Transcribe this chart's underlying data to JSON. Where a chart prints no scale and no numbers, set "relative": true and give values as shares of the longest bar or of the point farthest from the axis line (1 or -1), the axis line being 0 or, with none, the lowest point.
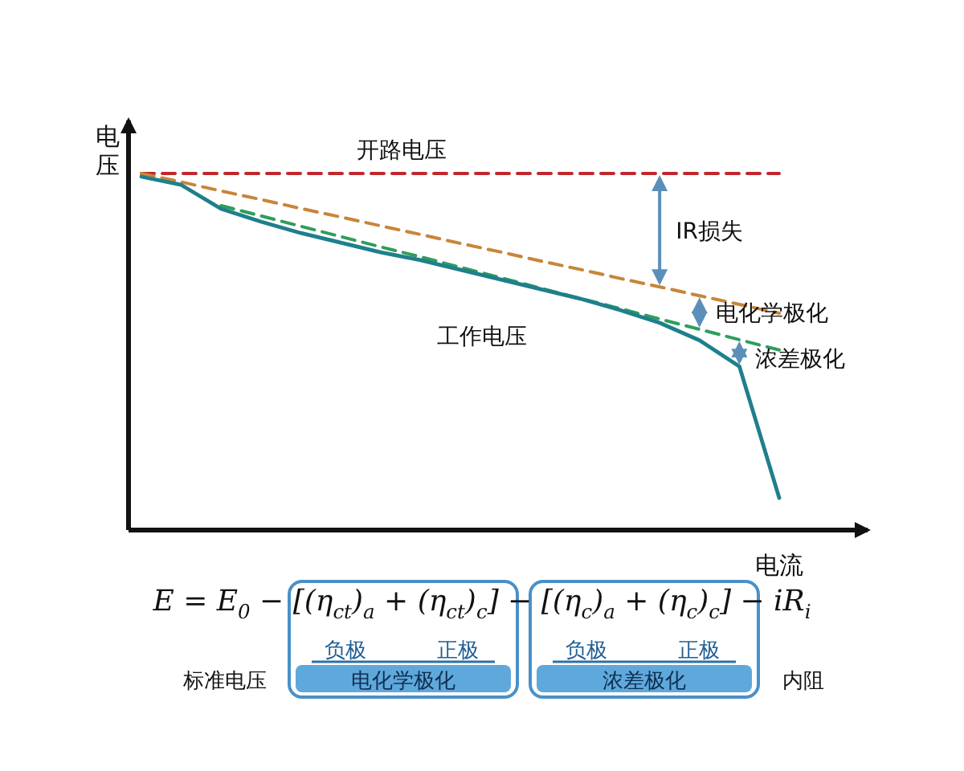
{
  "chart_data": {
    "type": "line",
    "relative": true,
    "xlabel": "电流",
    "ylabel": "电压",
    "categories": [
      null,
      null,
      null,
      null,
      null,
      null,
      null,
      null,
      null,
      null,
      null,
      null,
      null,
      null,
      null,
      null,
      null
    ],
    "series": [
      {
        "name": "开路电压",
        "color": "#c0272d",
        "line_style": "dashed",
        "values": [
          1,
          1,
          1,
          1,
          1,
          1,
          1,
          1,
          1,
          1,
          1,
          1,
          1,
          1,
          1,
          1,
          1
        ]
      },
      {
        "color": "#c8853a",
        "line_style": "dashed",
        "values": [
          1,
          0.976,
          0.951,
          0.927,
          0.902,
          0.878,
          0.853,
          0.829,
          0.804,
          0.78,
          0.755,
          0.731,
          0.706,
          0.682,
          0.657,
          0.633,
          0.608
        ]
      },
      {
        "color": "#2e9e5b",
        "line_style": "dashed",
        "values": [
          null,
          null,
          0.91,
          0.881,
          0.852,
          0.823,
          0.794,
          0.766,
          0.737,
          0.708,
          0.679,
          0.65,
          0.621,
          0.592,
          0.563,
          0.534,
          0.505
        ]
      },
      {
        "name": "工作电压",
        "color": "#1f7f8c",
        "line_style": "solid",
        "values": [
          0.991,
          0.968,
          0.901,
          0.865,
          0.833,
          0.806,
          0.779,
          0.757,
          0.73,
          0.703,
          0.676,
          0.649,
          0.617,
          0.581,
          0.532,
          0.459,
          0.09
        ]
      }
    ],
    "annotations": [
      "IR损失",
      "电化学极化",
      "浓差极化",
      "E = E$_{0}$ − [(η$_{ct}$)$_{a}$ + (η$_{ct}$)$_{c}$] − [(η$_{c}$)$_{a}$ + (η$_{c}$)$_{c}$] − iR$_{i}$",
      "负极",
      "正极",
      "电化学极化",
      "负极",
      "正极",
      "浓差极化",
      "标准电压",
      "内阻"
    ],
    "legend": false,
    "grid": false
  }
}
